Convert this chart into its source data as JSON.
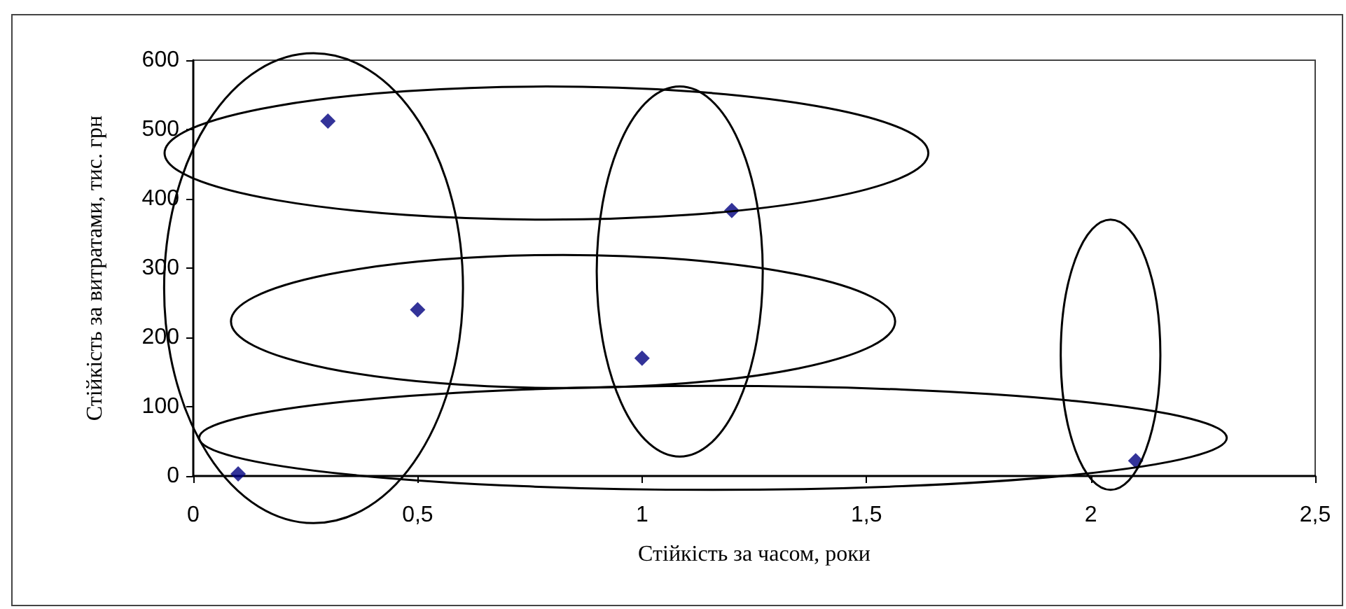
{
  "chart_data": {
    "type": "scatter",
    "xlabel": "Стійкість за часом, роки",
    "ylabel": "Стійкість за витратами, тис. грн",
    "x": [
      0.1,
      0.3,
      0.5,
      1.0,
      1.2,
      2.1
    ],
    "series": [
      {
        "color": "#000080",
        "values": [
          3,
          512,
          240,
          170,
          383,
          22
        ]
      }
    ],
    "xlim": [
      0,
      2.5
    ],
    "xticks": [
      0,
      {
        "value": 0.5,
        "label": "0,5"
      },
      1,
      {
        "value": 1.5,
        "label": "1,5"
      },
      2,
      {
        "value": 2.5,
        "label": "2,5"
      }
    ],
    "ylim": [
      0,
      600
    ],
    "yticks": [
      0,
      100,
      200,
      300,
      400,
      500,
      600
    ],
    "marker": "diamond",
    "grid": false
  }
}
